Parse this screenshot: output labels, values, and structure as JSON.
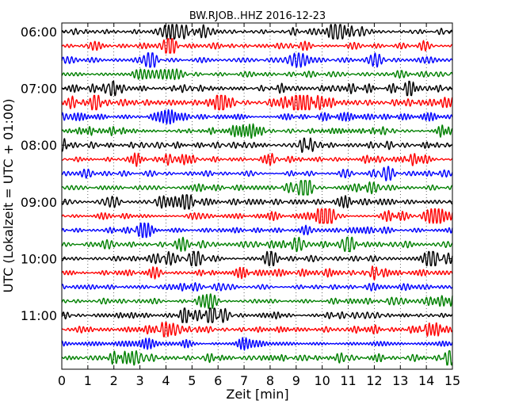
{
  "chart_data": {
    "type": "line",
    "title": "BW.RJOB..HHZ 2016-12-23",
    "xlabel": "Zeit  [min]",
    "ylabel": "UTC (Lokalzeit = UTC + 01:00)",
    "xlim": [
      0,
      15
    ],
    "x_ticks": [
      "0",
      "1",
      "2",
      "3",
      "4",
      "5",
      "6",
      "7",
      "8",
      "9",
      "10",
      "11",
      "12",
      "13",
      "14",
      "15"
    ],
    "y_ticks": [
      "06:00",
      "07:00",
      "08:00",
      "09:00",
      "10:00",
      "11:00"
    ],
    "traces_per_hour": 4,
    "trace_count": 24,
    "first_trace_start": "06:00",
    "trace_colors": [
      "#000000",
      "#ff0000",
      "#0000ff",
      "#008000"
    ],
    "grid": "vertical dotted at each minute",
    "series": [
      {
        "start": "06:00"
      },
      {
        "start": "06:15"
      },
      {
        "start": "06:30"
      },
      {
        "start": "06:45"
      },
      {
        "start": "07:00"
      },
      {
        "start": "07:15"
      },
      {
        "start": "07:30"
      },
      {
        "start": "07:45"
      },
      {
        "start": "08:00"
      },
      {
        "start": "08:15"
      },
      {
        "start": "08:30"
      },
      {
        "start": "08:45"
      },
      {
        "start": "09:00"
      },
      {
        "start": "09:15"
      },
      {
        "start": "09:30"
      },
      {
        "start": "09:45"
      },
      {
        "start": "10:00"
      },
      {
        "start": "10:15"
      },
      {
        "start": "10:30"
      },
      {
        "start": "10:45"
      },
      {
        "start": "11:00"
      },
      {
        "start": "11:15"
      },
      {
        "start": "11:30"
      },
      {
        "start": "11:45"
      }
    ]
  }
}
